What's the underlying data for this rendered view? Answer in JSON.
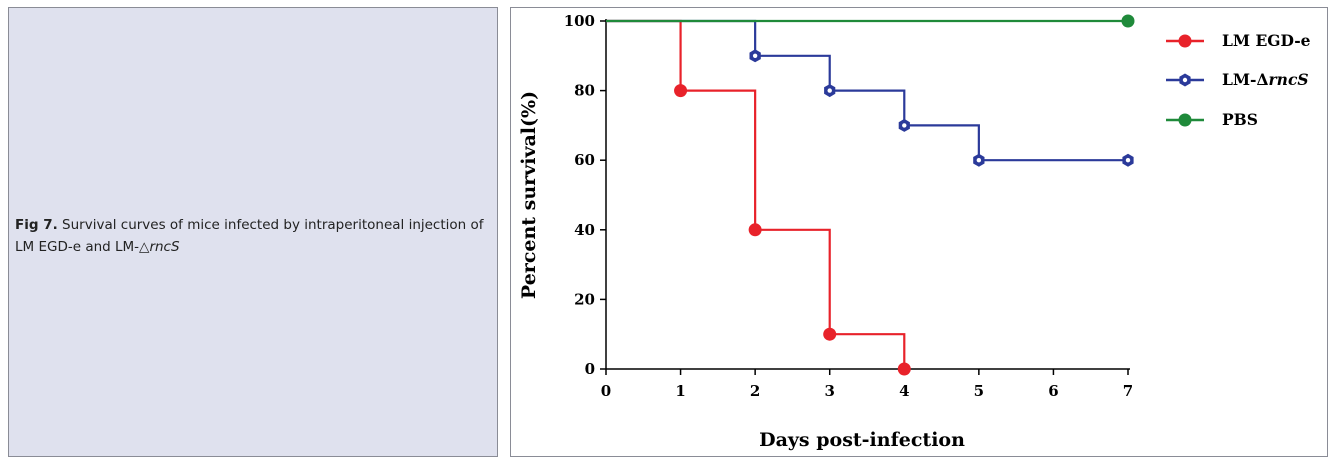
{
  "caption": {
    "label": "Fig 7.",
    "text": "Survival curves of mice infected by intraperitoneal injection of LM EGD-e and LM-",
    "italic": "rncS",
    "triangle": "△"
  },
  "chart_data": {
    "type": "line",
    "step": true,
    "xlabel": "Days  post-infection",
    "ylabel": "Percent survival(%)",
    "xlim": [
      0,
      7
    ],
    "ylim": [
      0,
      100
    ],
    "xticks": [
      0,
      1,
      2,
      3,
      4,
      5,
      6,
      7
    ],
    "yticks": [
      0,
      20,
      40,
      60,
      80,
      100
    ],
    "grid": false,
    "legend_position": "top-right",
    "series": [
      {
        "name": "LM EGD-e",
        "color": "#e8222a",
        "marker": "circle",
        "x": [
          0,
          1,
          2,
          3,
          4
        ],
        "y": [
          100,
          80,
          40,
          10,
          0
        ],
        "points": [
          [
            1,
            80
          ],
          [
            2,
            40
          ],
          [
            3,
            10
          ],
          [
            4,
            0
          ]
        ]
      },
      {
        "name": "LM-Δ",
        "name_italic": "rncS",
        "color": "#2b3a9a",
        "marker": "hexagon",
        "x": [
          0,
          2,
          3,
          4,
          5,
          7
        ],
        "y": [
          100,
          90,
          80,
          70,
          60,
          60
        ],
        "points": [
          [
            2,
            90
          ],
          [
            3,
            80
          ],
          [
            4,
            70
          ],
          [
            5,
            60
          ],
          [
            7,
            60
          ]
        ]
      },
      {
        "name": "PBS",
        "color": "#1f8a3a",
        "marker": "circle",
        "x": [
          0,
          7
        ],
        "y": [
          100,
          100
        ],
        "points": [
          [
            7,
            100
          ]
        ]
      }
    ]
  }
}
